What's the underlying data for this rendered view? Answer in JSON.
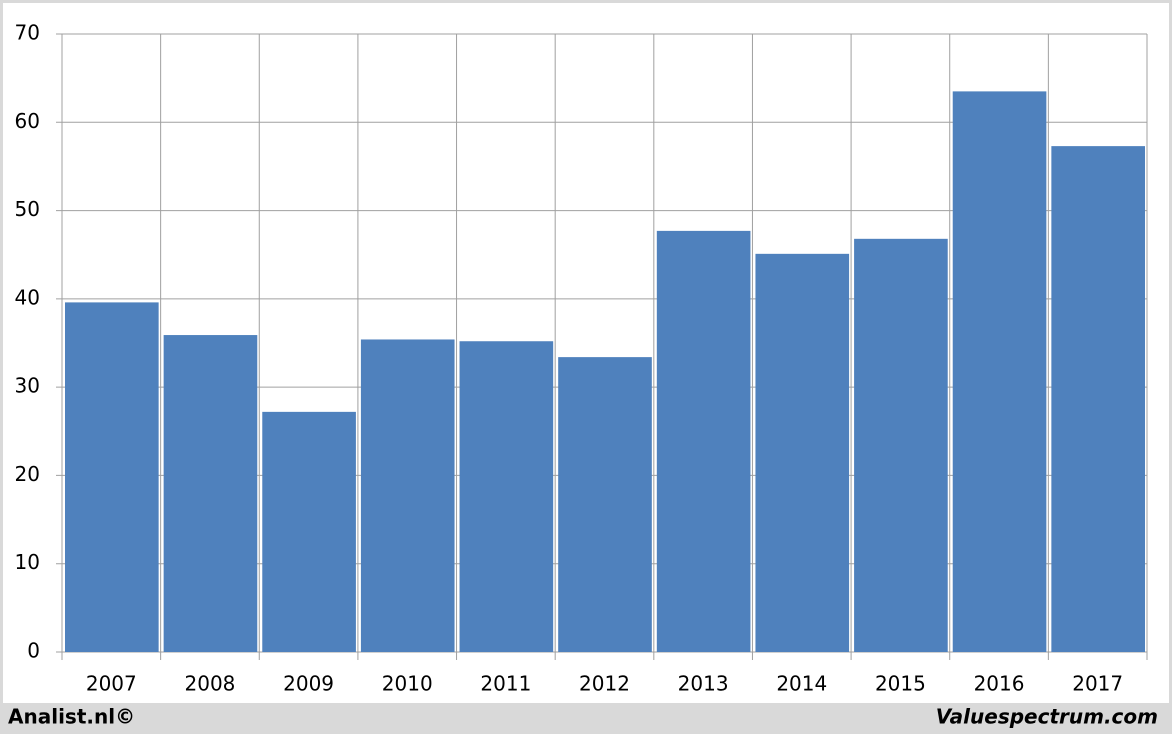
{
  "chart_data": {
    "type": "bar",
    "categories": [
      "2007",
      "2008",
      "2009",
      "2010",
      "2011",
      "2012",
      "2013",
      "2014",
      "2015",
      "2016",
      "2017"
    ],
    "values": [
      39.6,
      35.9,
      27.2,
      35.4,
      35.2,
      33.4,
      47.7,
      45.1,
      46.8,
      63.5,
      57.3
    ],
    "color": "#4f81bd",
    "ylim": [
      0,
      70
    ],
    "yticks": [
      0,
      10,
      20,
      30,
      40,
      50,
      60,
      70
    ],
    "grid": true,
    "footer_left": "Analist.nl©",
    "footer_right": "Valuespectrum.com"
  }
}
